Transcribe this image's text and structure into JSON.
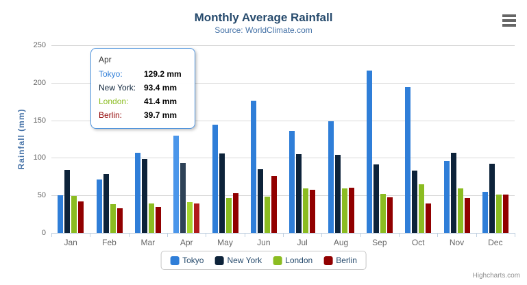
{
  "chart": {
    "title": "Monthly Average Rainfall",
    "subtitle": "Source: WorldClimate.com",
    "yaxis_title": "Rainfall (mm)",
    "credits": "Highcharts.com",
    "menu_icon": "hamburger-icon"
  },
  "chart_data": {
    "type": "bar",
    "title": "Monthly Average Rainfall",
    "subtitle": "Source: WorldClimate.com",
    "xlabel": "",
    "ylabel": "Rainfall (mm)",
    "ylim": [
      0,
      250
    ],
    "ytick_interval": 50,
    "grid": true,
    "legend_position": "bottom",
    "categories": [
      "Jan",
      "Feb",
      "Mar",
      "Apr",
      "May",
      "Jun",
      "Jul",
      "Aug",
      "Sep",
      "Oct",
      "Nov",
      "Dec"
    ],
    "series": [
      {
        "name": "Tokyo",
        "color": "#2f7ed8",
        "hover_color": "#4b96ea",
        "values": [
          49.9,
          71.5,
          106.4,
          129.2,
          144.0,
          176.0,
          135.6,
          148.5,
          216.4,
          194.1,
          95.6,
          54.4
        ]
      },
      {
        "name": "New York",
        "color": "#0d233a",
        "hover_color": "#2e4257",
        "values": [
          83.6,
          78.8,
          98.5,
          93.4,
          106.0,
          84.5,
          105.0,
          104.3,
          91.2,
          83.5,
          106.6,
          92.3
        ]
      },
      {
        "name": "London",
        "color": "#8bbc21",
        "hover_color": "#a6d62e",
        "values": [
          48.9,
          38.8,
          39.3,
          41.4,
          47.0,
          48.3,
          59.0,
          59.6,
          52.4,
          65.2,
          59.3,
          51.2
        ]
      },
      {
        "name": "Berlin",
        "color": "#910000",
        "hover_color": "#b01c1c",
        "values": [
          42.4,
          33.2,
          34.5,
          39.7,
          52.6,
          75.5,
          57.4,
          60.4,
          47.6,
          39.1,
          46.8,
          51.1
        ]
      }
    ]
  },
  "tooltip": {
    "category": "Apr",
    "border_color": "#4c92dc",
    "rows": [
      {
        "name": "Tokyo:",
        "value": "129.2 mm",
        "color": "#2f7ed8"
      },
      {
        "name": "New York:",
        "value": "93.4 mm",
        "color": "#0d233a"
      },
      {
        "name": "London:",
        "value": "41.4 mm",
        "color": "#8bbc21"
      },
      {
        "name": "Berlin:",
        "value": "39.7 mm",
        "color": "#910000"
      }
    ]
  },
  "colors": {
    "title": "#274b6d",
    "subtitle": "#4572a7",
    "axis_label": "#666666",
    "axis_line": "#c0d0e0",
    "gridline": "#d8d8d8",
    "legend_text": "#274b6d",
    "credits": "#909090"
  }
}
